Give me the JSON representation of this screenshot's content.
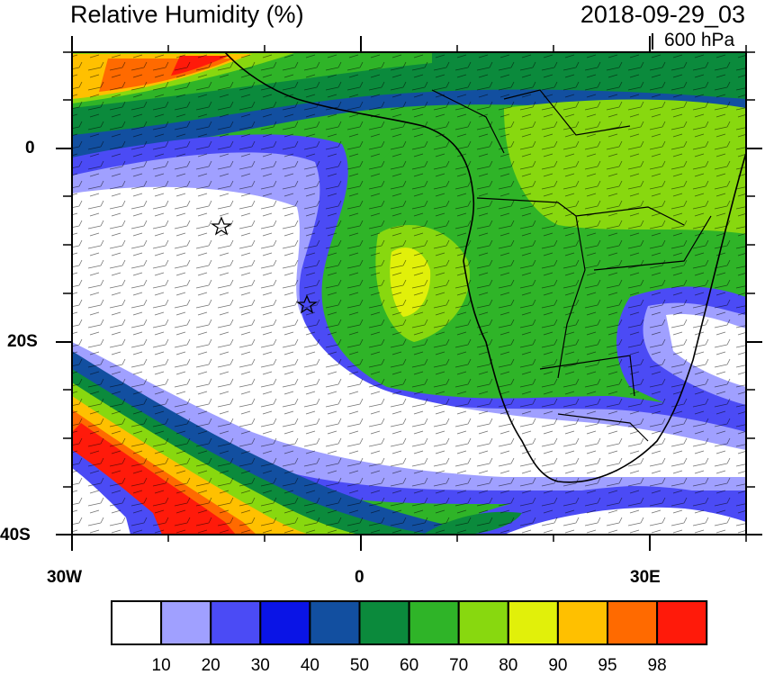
{
  "title": "Relative Humidity (%)",
  "datetime": "2018-09-29_03",
  "level": "600 hPa",
  "axes": {
    "x_ticks": [
      "30W",
      "0",
      "30E"
    ],
    "y_ticks": [
      "0",
      "20S",
      "40S"
    ]
  },
  "colorbar": {
    "colors": [
      "#ffffff",
      "#a0a0ff",
      "#4b4bf5",
      "#0a14e6",
      "#124fa0",
      "#0b8a3c",
      "#2fb428",
      "#88d80f",
      "#e1f00a",
      "#ffc000",
      "#ff6a00",
      "#ff1a0a"
    ],
    "labels": [
      "10",
      "20",
      "30",
      "40",
      "50",
      "60",
      "70",
      "80",
      "90",
      "95",
      "98"
    ]
  }
}
